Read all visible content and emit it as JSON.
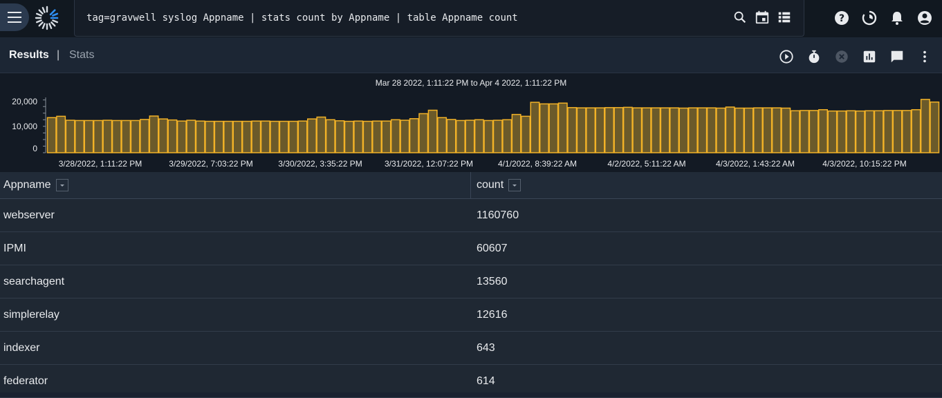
{
  "query": {
    "text": "tag=gravwell syslog Appname | stats count by Appname | table Appname count"
  },
  "tabs": {
    "results": "Results",
    "separator": "|",
    "stats": "Stats"
  },
  "chart_data": {
    "type": "bar",
    "title": "Mar 28 2022, 1:11:22 PM to Apr 4 2022, 1:11:22 PM",
    "ylim": [
      0,
      22000
    ],
    "y_ticks": [
      "20,000",
      "10,000",
      "0"
    ],
    "y_tick_values": [
      20000,
      10000,
      0
    ],
    "x_tick_labels": [
      "3/28/2022, 1:11:22 PM",
      "3/29/2022, 7:03:22 PM",
      "3/30/2022, 3:35:22 PM",
      "3/31/2022, 12:07:22 PM",
      "4/1/2022, 8:39:22 AM",
      "4/2/2022, 5:11:22 AM",
      "4/3/2022, 1:43:22 AM",
      "4/3/2022, 10:15:22 PM"
    ],
    "bar_color": "#f2b227",
    "bar_fill": "#6b5a2a",
    "values": [
      13300,
      13800,
      12300,
      12200,
      12200,
      12200,
      12300,
      12200,
      12200,
      12200,
      12600,
      13900,
      12800,
      12400,
      12000,
      12300,
      12000,
      11900,
      11900,
      11900,
      11900,
      11900,
      12000,
      12000,
      11900,
      11900,
      11900,
      12000,
      12800,
      13500,
      12500,
      12100,
      11900,
      12000,
      11900,
      12000,
      12000,
      12500,
      12300,
      12900,
      14800,
      16100,
      13300,
      12600,
      12200,
      12300,
      12500,
      12200,
      12300,
      12500,
      14500,
      13800,
      19100,
      18500,
      18500,
      18800,
      17100,
      17000,
      17000,
      17000,
      17100,
      17100,
      17200,
      17000,
      17000,
      17000,
      17000,
      17000,
      16900,
      17000,
      17000,
      17000,
      16900,
      17300,
      16900,
      16900,
      17000,
      17000,
      17000,
      16900,
      15900,
      16000,
      16000,
      16300,
      15800,
      15800,
      15900,
      15800,
      15900,
      15900,
      16000,
      16000,
      16000,
      16300,
      20200,
      19200
    ]
  },
  "table": {
    "columns": [
      "Appname",
      "count"
    ],
    "rows": [
      {
        "appname": "webserver",
        "count": "1160760"
      },
      {
        "appname": "IPMI",
        "count": "60607"
      },
      {
        "appname": "searchagent",
        "count": "13560"
      },
      {
        "appname": "simplerelay",
        "count": "12616"
      },
      {
        "appname": "indexer",
        "count": "643"
      },
      {
        "appname": "federator",
        "count": "614"
      }
    ]
  },
  "colors": {
    "accent": "#f2b227",
    "logo_blue": "#2f8ff5"
  }
}
